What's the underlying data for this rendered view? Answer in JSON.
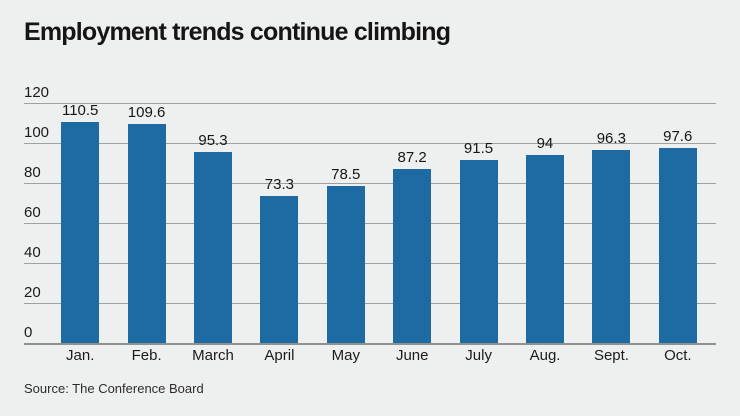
{
  "title": "Employment trends continue climbing",
  "source": "Source: The Conference Board",
  "colors": {
    "background": "#eef0ef",
    "bar": "#1e6ba3",
    "text": "#161616",
    "gridline": "#9da1a0"
  },
  "chart_data": {
    "type": "bar",
    "title": "Employment trends continue climbing",
    "categories": [
      "Jan.",
      "Feb.",
      "March",
      "April",
      "May",
      "June",
      "July",
      "Aug.",
      "Sept.",
      "Oct."
    ],
    "values": [
      110.5,
      109.6,
      95.3,
      73.3,
      78.5,
      87.2,
      91.5,
      94,
      96.3,
      97.6
    ],
    "value_labels": [
      "110.5",
      "109.6",
      "95.3",
      "73.3",
      "78.5",
      "87.2",
      "91.5",
      "94",
      "96.3",
      "97.6"
    ],
    "yticks": [
      0,
      20,
      40,
      60,
      80,
      100,
      120
    ],
    "ylim": [
      0,
      120
    ],
    "grid": true,
    "legend": null,
    "xlabel": "",
    "ylabel": "",
    "source": "Source: The Conference Board"
  }
}
